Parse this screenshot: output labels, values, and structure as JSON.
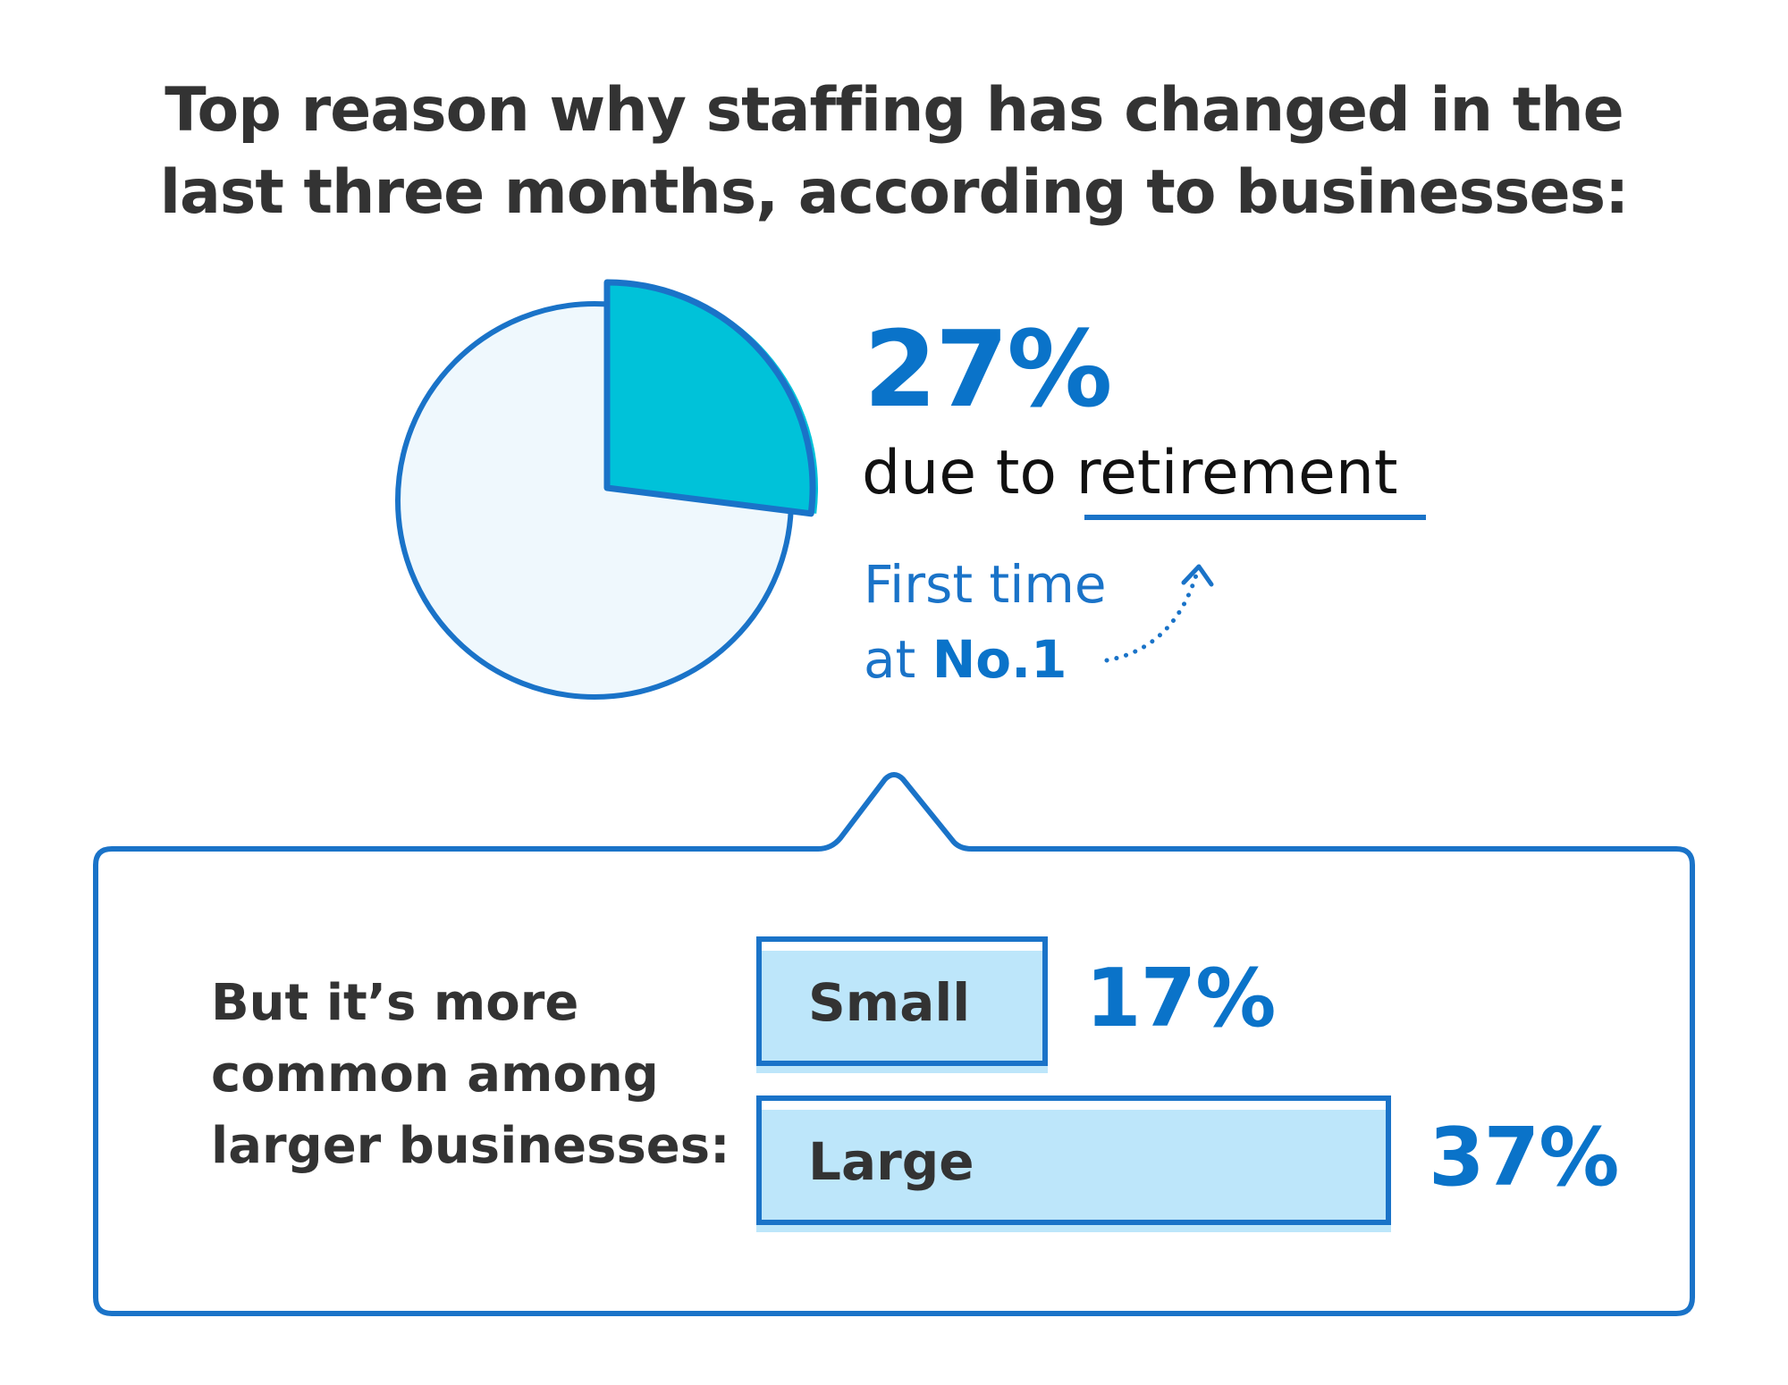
{
  "title": {
    "line1": "Top reason why staffing has changed in the",
    "line2": "last three months, according to businesses:"
  },
  "headline": {
    "value": "27%",
    "text_prefix": "due to",
    "keyword": "retirement",
    "note_line1": "First time",
    "note_line2_prefix": "at",
    "note_line2_bold": "No.1"
  },
  "side_text": {
    "line1": "But it’s more",
    "line2": "common among",
    "line3": "larger businesses:"
  },
  "colors": {
    "primary": "#1a73c8",
    "slice": "#00c2d9",
    "pie_background": "#eff8fd",
    "bar_fill": "#bde6fa",
    "text": "#333333"
  },
  "chart_data": [
    {
      "type": "pie",
      "slices": [
        {
          "label": "due to retirement",
          "value": 27
        },
        {
          "label": "",
          "value": 73
        }
      ],
      "unit": "%"
    },
    {
      "type": "bar",
      "orientation": "horizontal",
      "categories": [
        "Small",
        "Large"
      ],
      "values": [
        17,
        37
      ],
      "value_labels": [
        "17%",
        "37%"
      ],
      "unit": "%"
    }
  ]
}
